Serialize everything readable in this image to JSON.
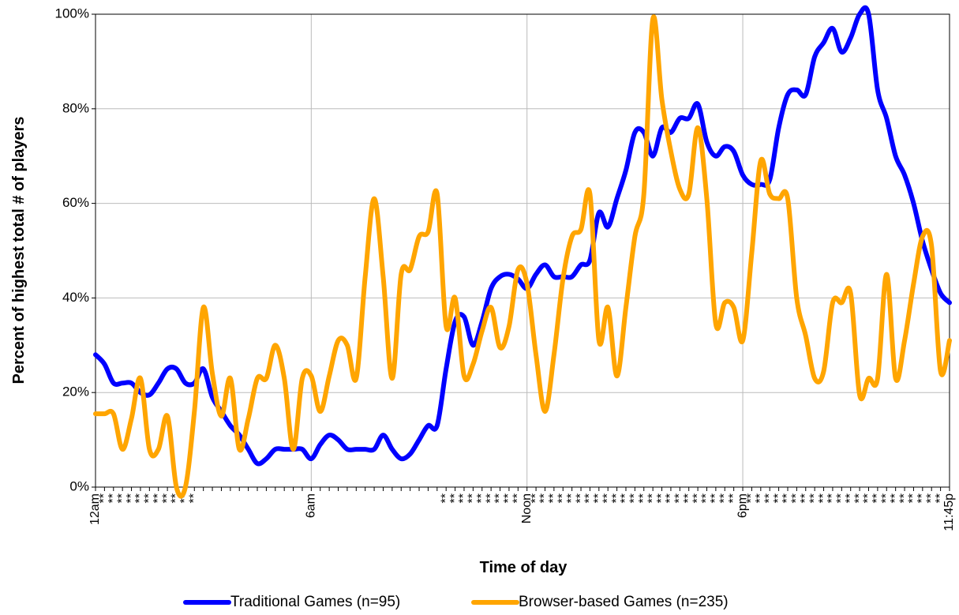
{
  "chart_data": {
    "type": "line",
    "xlabel": "Time of day",
    "ylabel": "Percent of highest total # of players",
    "categories": [
      "12am",
      "**",
      "**",
      "**",
      "**",
      "**",
      "**",
      "**",
      "**",
      "**",
      "**",
      "**",
      null,
      null,
      null,
      null,
      null,
      null,
      null,
      null,
      null,
      null,
      null,
      null,
      "6am",
      null,
      null,
      null,
      null,
      null,
      null,
      null,
      null,
      null,
      null,
      null,
      null,
      null,
      null,
      "**",
      "**",
      "**",
      "**",
      "**",
      "**",
      "**",
      "**",
      "**",
      "Noon",
      "**",
      "**",
      "**",
      "**",
      "**",
      "**",
      "**",
      "**",
      "**",
      "**",
      "**",
      "**",
      "**",
      "**",
      "**",
      "**",
      "**",
      "**",
      "**",
      "**",
      "**",
      "**",
      "**",
      "6pm",
      "**",
      "**",
      "**",
      "**",
      "**",
      "**",
      "**",
      "**",
      "**",
      "**",
      "**",
      "**",
      "**",
      "**",
      "**",
      "**",
      "**",
      "**",
      "**",
      "**",
      "**",
      "**",
      "11:45p"
    ],
    "series": [
      {
        "name": "Traditional Games (n=95)",
        "color": "#0000ff",
        "values": [
          28,
          26,
          22,
          22,
          22,
          20,
          19.5,
          22,
          25,
          25,
          22,
          22,
          25,
          19,
          16,
          13,
          11,
          8,
          5,
          6,
          8,
          8,
          8,
          8,
          6,
          9,
          11,
          10,
          8,
          8,
          8,
          8,
          11,
          8,
          6,
          7,
          10,
          13,
          13,
          25,
          35,
          36,
          30,
          35,
          42,
          44.5,
          45,
          44,
          42,
          45,
          47,
          44.5,
          44.5,
          44.5,
          47,
          48,
          58,
          55,
          61,
          67,
          75,
          75,
          70,
          76,
          75,
          78,
          78,
          81,
          73,
          70,
          72,
          71,
          66,
          64,
          64,
          65,
          76,
          83,
          84,
          83,
          91,
          94,
          97,
          92,
          95,
          100,
          100,
          84,
          78,
          70,
          66,
          60,
          52,
          46,
          41,
          39
        ]
      },
      {
        "name": "Browser-based Games (n=235)",
        "color": "#ffa500",
        "values": [
          15.5,
          15.5,
          15.5,
          8,
          14.5,
          23,
          8,
          8,
          15,
          0,
          0,
          16,
          38,
          24,
          15,
          23,
          8,
          14.5,
          23,
          23,
          30,
          23,
          8,
          23,
          23.5,
          16,
          23.5,
          31,
          30,
          23,
          44.5,
          61,
          44.5,
          23,
          45,
          46,
          53,
          54,
          62,
          34,
          40,
          23.5,
          26,
          33,
          38,
          29.5,
          34,
          46,
          43,
          28,
          16,
          28,
          44,
          53,
          54.5,
          62,
          31,
          38,
          23.5,
          38,
          53,
          62,
          99,
          82,
          71,
          63,
          62,
          76,
          61,
          34.5,
          39,
          38,
          31,
          49.5,
          69,
          62,
          61,
          61,
          40,
          32,
          23,
          24.5,
          39,
          39,
          41,
          19.5,
          23,
          23,
          45,
          23,
          31,
          43,
          53,
          51,
          24.5,
          31
        ]
      }
    ],
    "ylim": [
      0,
      100
    ],
    "yticks": [
      {
        "value": 0,
        "label": "0%"
      },
      {
        "value": 20,
        "label": "20%"
      },
      {
        "value": 40,
        "label": "40%"
      },
      {
        "value": 60,
        "label": "60%"
      },
      {
        "value": 80,
        "label": "80%"
      },
      {
        "value": 100,
        "label": "100%"
      }
    ],
    "grid": true,
    "legend": "bottom"
  }
}
